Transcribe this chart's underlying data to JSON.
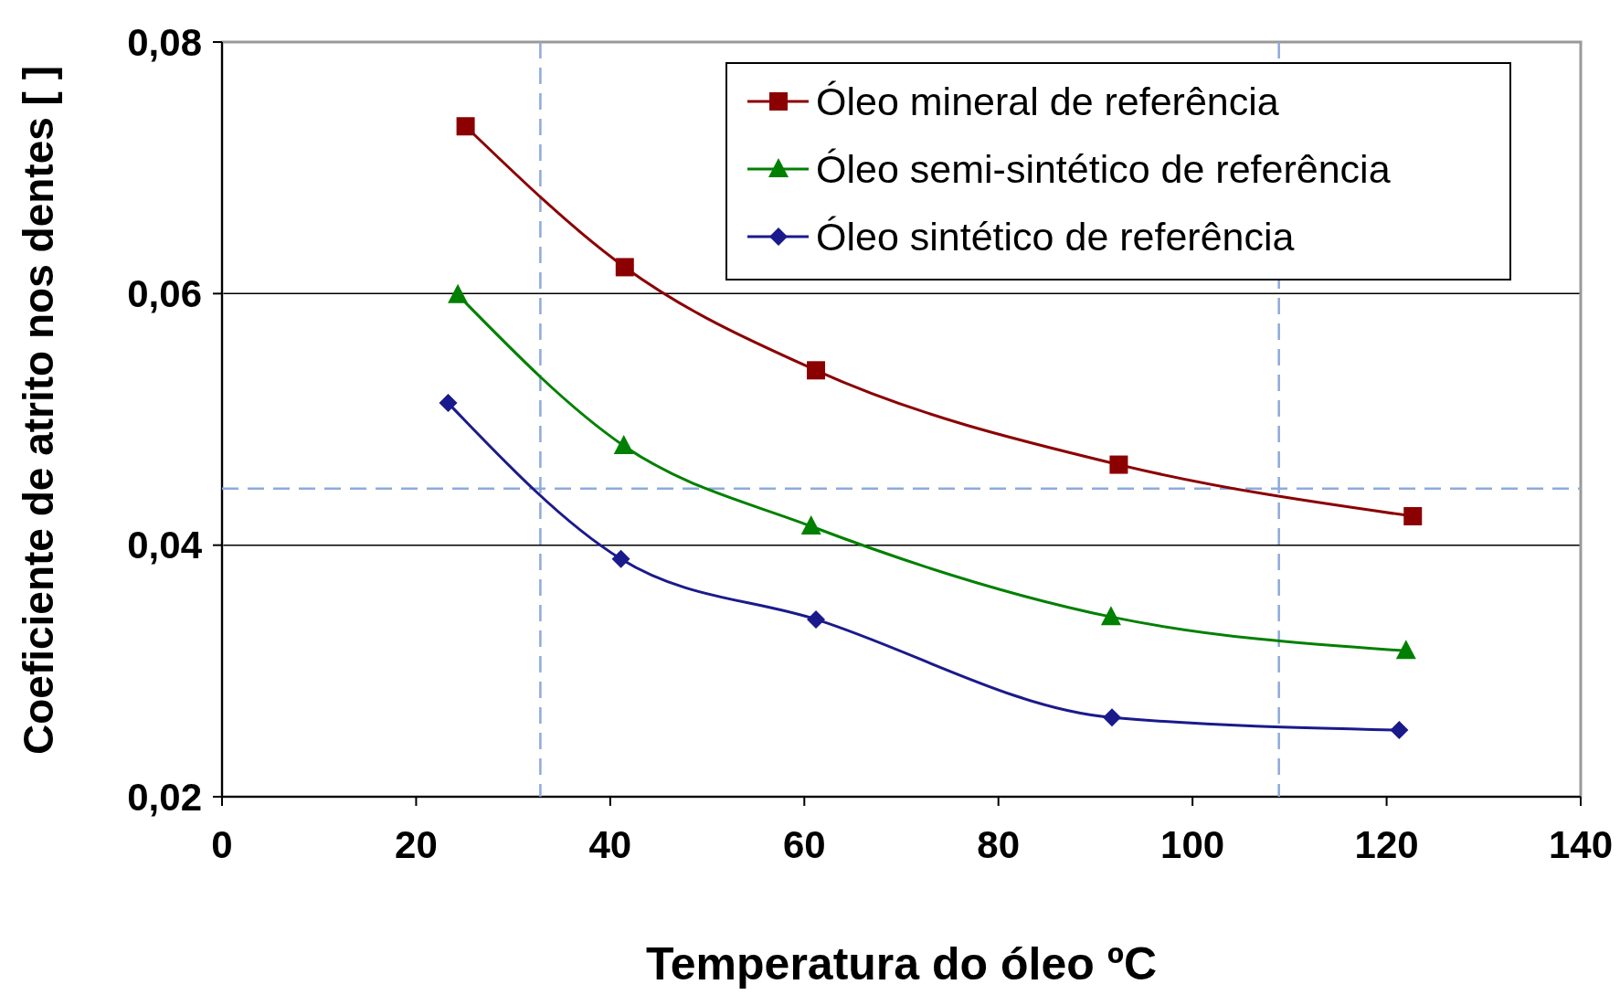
{
  "chart_data": {
    "type": "line",
    "xlabel": "Temperatura do óleo ºC",
    "ylabel": "Coeficiente de atrito nos dentes [ ]",
    "xlim": [
      0,
      140
    ],
    "xticks": [
      0,
      20,
      40,
      60,
      80,
      100,
      120,
      140
    ],
    "ylim": [
      0.02,
      0.08
    ],
    "yticks": [
      {
        "value": 0.02,
        "label": "0,02"
      },
      {
        "value": 0.04,
        "label": "0,04"
      },
      {
        "value": 0.06,
        "label": "0,06"
      },
      {
        "value": 0.08,
        "label": "0,08"
      }
    ],
    "grid": "y",
    "legend": "top right",
    "line_style": "solid",
    "series": [
      {
        "name": "Óleo mineral de referência",
        "color": "#8b0000",
        "marker": "square",
        "x": [
          25.1,
          41.5,
          61.2,
          92.4,
          122.7
        ],
        "values": [
          0.0733,
          0.0621,
          0.0539,
          0.0464,
          0.0423
        ]
      },
      {
        "name": "Óleo semi-sintético de referência",
        "color": "#008000",
        "marker": "triangle",
        "x": [
          24.3,
          41.4,
          60.7,
          91.6,
          122.0
        ],
        "values": [
          0.0599,
          0.0479,
          0.0415,
          0.0343,
          0.0316
        ]
      },
      {
        "name": "Óleo sintético de referência",
        "color": "#1a1a8c",
        "marker": "diamond",
        "x": [
          23.3,
          41.1,
          61.2,
          91.7,
          121.3
        ],
        "values": [
          0.0513,
          0.0389,
          0.0341,
          0.0263,
          0.0253
        ]
      }
    ],
    "ref_lines": [
      {
        "axis": "y",
        "value": 0.0445,
        "color": "#8eaadb",
        "line_style": "dashed"
      },
      {
        "axis": "x",
        "value": 32.8,
        "color": "#8eaadb",
        "line_style": "dashed"
      },
      {
        "axis": "x",
        "value": 108.9,
        "color": "#8eaadb",
        "line_style": "dashed"
      }
    ]
  }
}
